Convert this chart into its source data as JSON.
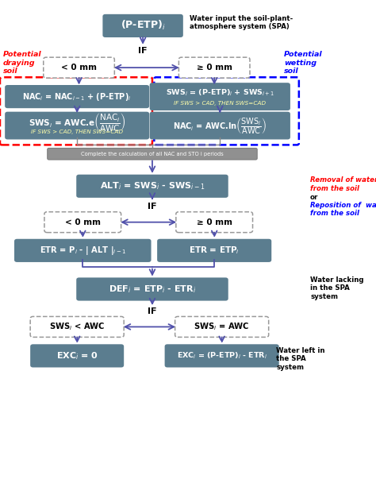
{
  "fig_width": 4.74,
  "fig_height": 6.08,
  "dpi": 100,
  "bg_color": "#ffffff",
  "box_color": "#5b7d8f",
  "arrow_color": "#5050aa",
  "top_box": "(P-ETP)$_i$",
  "title": "Water input the soil-plant-\natmosphere system (SPA)",
  "if1": "IF",
  "lt1": "< 0 mm",
  "ge1": "≥ 0 mm",
  "pot_dry": "Potential\ndraying\nsoil",
  "pot_wet": "Potential\nwetting\nsoil",
  "nac_eq": "NAC$_i$ = NAC$_{i-1}$ + (P-ETP)$_i$",
  "note_left": "IF SWS > CAD, THEN SWS=CAD",
  "sws_right_top": "SWS$_i$ = (P-ETP)$_i$ + SWS$_{i+1}$",
  "note_right_top": "IF SWS > CAD, THEN SWS=CAD",
  "nac_ln": "NAC$_i$ = AWC.ln$\\left(\\dfrac{\\mathrm{SWS}_i}{\\mathrm{AWC}}\\right)$",
  "complete": "Complete the calculation of all NAC and STO i periods",
  "alt_eq": "ALT$_i$ = SWS$_i$ - SWS$_{i-1}$",
  "removal_line1": "Removal of water",
  "removal_line2": "from the soil",
  "or_text": "or",
  "reposition_line1": "Reposition of  water",
  "reposition_line2": "from the soil",
  "if2": "IF",
  "lt2": "< 0 mm",
  "ge2": "≥ 0 mm",
  "etr_left": "ETR = P$_i$ - | ALT |$_{i-1}$",
  "etr_right": "ETR = ETP$_i$",
  "def_eq": "DEF$_i$ = ETP$_i$ - ETR$_i$",
  "lacking": "Water lacking\nin the SPA\nsystem",
  "if3": "IF",
  "sws_lt": "SWS$_i$ < AWC",
  "sws_eq": "SWS$_i$ = AWC",
  "exc0": "EXC$_i$ = 0",
  "exc_eq": "EXC$_i$ = (P-ETP)$_i$ - ETR$_i$",
  "water_left": "Water left in\nthe SPA\nsystem",
  "xlim": [
    0,
    10
  ],
  "ylim": [
    0,
    15
  ]
}
